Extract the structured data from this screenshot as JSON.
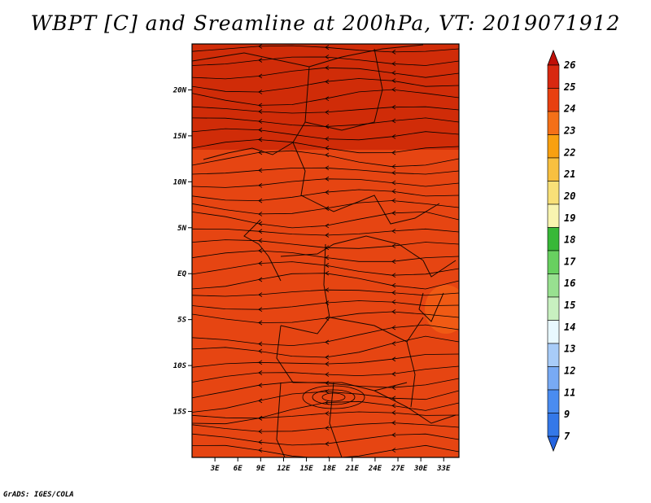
{
  "title": "WBPT [C] and Sreamline at 200hPa, VT: 2019071912",
  "credit": "GrADS: IGES/COLA",
  "map": {
    "lat_labels": [
      "20N",
      "15N",
      "10N",
      "5N",
      "EQ",
      "5S",
      "10S",
      "15S"
    ],
    "lat_values": [
      20,
      15,
      10,
      5,
      0,
      -5,
      -10,
      -15
    ],
    "lon_labels": [
      "3E",
      "6E",
      "9E",
      "12E",
      "15E",
      "18E",
      "21E",
      "24E",
      "27E",
      "30E",
      "33E"
    ],
    "lon_values": [
      3,
      6,
      9,
      12,
      15,
      18,
      21,
      24,
      27,
      30,
      33
    ],
    "lon_range": [
      0,
      35
    ],
    "lat_range": [
      -20,
      25
    ],
    "field_colors": {
      "high": "#d02c08",
      "mid": "#e64512",
      "low": "#f05a14"
    }
  },
  "colorbar": {
    "labels": [
      "7",
      "9",
      "11",
      "12",
      "13",
      "14",
      "15",
      "16",
      "17",
      "18",
      "19",
      "20",
      "21",
      "22",
      "23",
      "24",
      "25",
      "26"
    ],
    "colors": [
      "#2464e0",
      "#3478e8",
      "#4a8cf0",
      "#78aaf4",
      "#a8ccf8",
      "#e8f8ff",
      "#c8f0c0",
      "#98e090",
      "#68d060",
      "#38b838",
      "#f8f4b0",
      "#f8e078",
      "#f8c040",
      "#f8a010",
      "#f47018",
      "#e84010",
      "#d82810",
      "#c01008"
    ]
  }
}
